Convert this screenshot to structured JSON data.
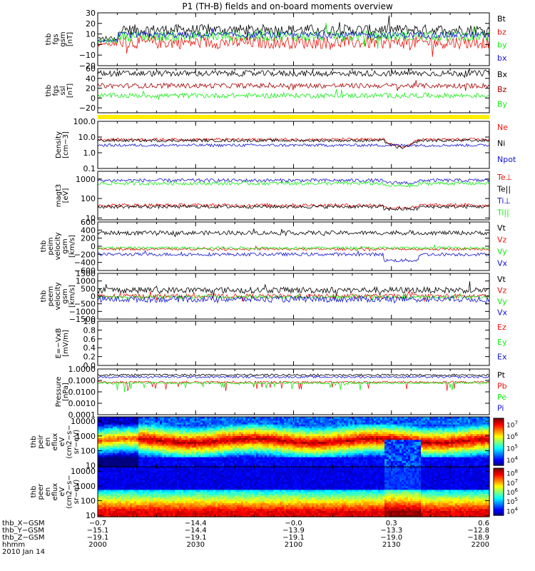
{
  "title": "P1 (TH-B) fields and on-board moments overview",
  "colors": {
    "black": "#000000",
    "red": "#e8130c",
    "green": "#12ee12",
    "blue": "#1111cc",
    "darkred": "#a50000",
    "yellow": "#ffee00"
  },
  "chart_data": [
    {
      "type": "line",
      "id": "fgs",
      "ylabel": [
        "thb",
        "fgs",
        "gsm",
        "[nT]"
      ],
      "ylim": [
        -20,
        30
      ],
      "yticks": [
        "30",
        "20",
        "10",
        "0",
        "−10",
        "−20"
      ],
      "ytick_values": [
        30,
        20,
        10,
        0,
        -10,
        -20
      ],
      "series": [
        {
          "name": "Bt",
          "color": "black",
          "level": 14,
          "noise": 5
        },
        {
          "name": "bz",
          "color": "red",
          "level": 2,
          "noise": 6
        },
        {
          "name": "by",
          "color": "green",
          "level": 8,
          "noise": 5
        },
        {
          "name": "bx",
          "color": "blue",
          "level": 9,
          "noise": 3
        }
      ]
    },
    {
      "type": "line",
      "id": "fgs_ssl",
      "ylabel": [
        "thb",
        "fgs",
        "ssl",
        "[nT]"
      ],
      "ylim": [
        -30,
        60
      ],
      "yticks": [
        "60",
        "40",
        "20",
        "0",
        "−20"
      ],
      "ytick_values": [
        60,
        40,
        20,
        0,
        -20
      ],
      "series": [
        {
          "name": "Bx",
          "color": "black",
          "level": 50,
          "noise": 6
        },
        {
          "name": "Bz",
          "color": "darkred",
          "level": 25,
          "noise": 5
        },
        {
          "name": "By",
          "color": "green",
          "level": 5,
          "noise": 5
        }
      ]
    },
    {
      "type": "line",
      "id": "density",
      "ylabel": [
        "Density",
        "[cm−3]"
      ],
      "log": true,
      "ylim": [
        0.1,
        100
      ],
      "yticks": [
        "100.0",
        "10.0",
        "1.0",
        "0.1"
      ],
      "ytick_values": [
        100,
        10,
        1,
        0.1
      ],
      "series": [
        {
          "name": "Ne",
          "color": "red",
          "level": 7
        },
        {
          "name": "Ni",
          "color": "black",
          "level": 6
        },
        {
          "name": "Npot",
          "color": "blue",
          "level": 3
        }
      ]
    },
    {
      "type": "line",
      "id": "temp",
      "ylabel": [
        "magt3",
        "[eV]"
      ],
      "log": true,
      "ylim": [
        8,
        2500
      ],
      "yticks": [
        "1000",
        "100",
        "10"
      ],
      "ytick_values": [
        1000,
        100,
        10
      ],
      "series": [
        {
          "name": "Te⊥",
          "color": "red",
          "level": 45
        },
        {
          "name": "Te||",
          "color": "black",
          "level": 38
        },
        {
          "name": "Ti⊥",
          "color": "blue",
          "level": 850
        },
        {
          "name": "Ti||",
          "color": "green",
          "level": 600
        }
      ]
    },
    {
      "type": "line",
      "id": "peim",
      "ylabel": [
        "thb",
        "peim",
        "velocity",
        "gsm",
        "[km/s]"
      ],
      "ylim": [
        -600,
        600
      ],
      "yticks": [
        "600",
        "400",
        "200",
        "0",
        "−200",
        "−400",
        "−600"
      ],
      "ytick_values": [
        600,
        400,
        200,
        0,
        -200,
        -400,
        -600
      ],
      "series": [
        {
          "name": "Vt",
          "color": "black",
          "level": 330,
          "noise": 50
        },
        {
          "name": "Vz",
          "color": "red",
          "level": -70,
          "noise": 30
        },
        {
          "name": "Vy",
          "color": "green",
          "level": -40,
          "noise": 30
        },
        {
          "name": "Vx",
          "color": "blue",
          "level": -200,
          "noise": 40
        }
      ]
    },
    {
      "type": "line",
      "id": "peem",
      "ylabel": [
        "thb",
        "peem",
        "velocity",
        "gsm",
        "[km/s]"
      ],
      "ylim": [
        -1500,
        1500
      ],
      "yticks": [
        "1500",
        "1000",
        "500",
        "0",
        "−500",
        "−1000",
        "−1500"
      ],
      "ytick_values": [
        1500,
        1000,
        500,
        0,
        -500,
        -1000,
        -1500
      ],
      "series": [
        {
          "name": "Vt",
          "color": "black",
          "level": 400,
          "noise": 200
        },
        {
          "name": "Vz",
          "color": "red",
          "level": 0,
          "noise": 150
        },
        {
          "name": "Vy",
          "color": "green",
          "level": -50,
          "noise": 100
        },
        {
          "name": "Vx",
          "color": "blue",
          "level": -200,
          "noise": 200
        }
      ]
    },
    {
      "type": "line",
      "id": "efield",
      "ylabel": [
        "E=−VxB",
        "[mV/m]"
      ],
      "ylim": [
        0,
        1
      ],
      "yticks": [
        "1.0",
        "0.8",
        "0.6",
        "0.4",
        "0.2",
        "0.0"
      ],
      "ytick_values": [
        1,
        0.8,
        0.6,
        0.4,
        0.2,
        0
      ],
      "series": [
        {
          "name": "Ez",
          "color": "red"
        },
        {
          "name": "Ey",
          "color": "green"
        },
        {
          "name": "Ex",
          "color": "blue"
        }
      ]
    },
    {
      "type": "line",
      "id": "pressure",
      "ylabel": [
        "Pressure",
        "[nPa]"
      ],
      "log": true,
      "ylim": [
        0.0001,
        1
      ],
      "yticks": [
        "1.0000",
        "0.1000",
        "0.0100",
        "0.0010",
        "0.0001"
      ],
      "ytick_values": [
        1,
        0.1,
        0.01,
        0.001,
        0.0001
      ],
      "series": [
        {
          "name": "Pt",
          "color": "black",
          "level": 0.3
        },
        {
          "name": "Pb",
          "color": "red",
          "level": 0.07
        },
        {
          "name": "Pe",
          "color": "green",
          "level": 0.06
        },
        {
          "name": "Pi",
          "color": "blue",
          "level": 0.2
        }
      ]
    },
    {
      "type": "heatmap",
      "id": "peir",
      "ylabel": [
        "thb",
        "peir",
        "en",
        "eflux",
        "eV",
        "(cm2−s−",
        "sr−eV)"
      ],
      "log": true,
      "ylim": [
        8,
        20000
      ],
      "yticks": [
        "10000",
        "1000",
        "100",
        "10"
      ],
      "ytick_values": [
        10000,
        1000,
        100,
        10
      ],
      "colorbar": {
        "ticks": [
          "7",
          "6",
          "5",
          "4"
        ],
        "range": [
          3.5,
          7.5
        ]
      }
    },
    {
      "type": "heatmap",
      "id": "peer",
      "ylabel": [
        "thb",
        "peer",
        "en",
        "eflux",
        "eV",
        "(cm2−s−",
        "sr−eV)"
      ],
      "log": true,
      "ylim": [
        8,
        20000
      ],
      "yticks": [
        "10000",
        "1000",
        "100",
        "10"
      ],
      "ytick_values": [
        10000,
        1000,
        100,
        10
      ],
      "colorbar": {
        "ticks": [
          "8",
          "7",
          "6",
          "5",
          "4"
        ],
        "range": [
          3.5,
          8.5
        ]
      }
    }
  ],
  "xaxis": {
    "rows": [
      {
        "label": "thb_X−GSM",
        "values": [
          "−0.7",
          "−14.4",
          "−0.0",
          "0.3",
          "0.6"
        ]
      },
      {
        "label": "thb_Y−GSM",
        "values": [
          "−15.1",
          "−14.4",
          "−13.9",
          "−13.3",
          "−12.8"
        ]
      },
      {
        "label": "thb_Z−GSM",
        "values": [
          "−19.1",
          "−19.1",
          "−19.1",
          "−19.0",
          "−18.9"
        ]
      },
      {
        "label": "hhmm",
        "values": [
          "2000",
          "2030",
          "2100",
          "2130",
          "2200"
        ]
      }
    ],
    "date": "2010 Jan 14",
    "xlim": [
      2000,
      2200
    ]
  }
}
